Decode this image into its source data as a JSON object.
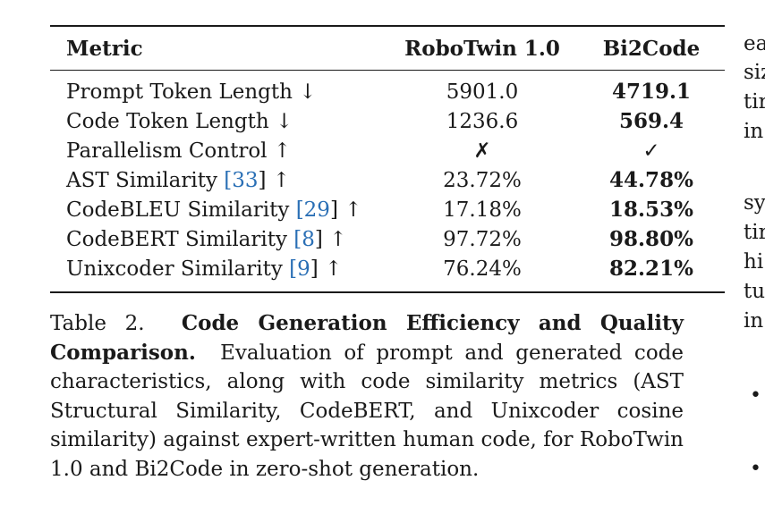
{
  "table": {
    "headers": [
      "Metric",
      "RoboTwin 1.0",
      "Bi2Code"
    ],
    "rows": [
      {
        "metric": "Prompt Token Length",
        "ref": "",
        "arrow": "↓",
        "robotwin": "5901.0",
        "bi2code": "4719.1"
      },
      {
        "metric": "Code Token Length",
        "ref": "",
        "arrow": "↓",
        "robotwin": "1236.6",
        "bi2code": "569.4"
      },
      {
        "metric": "Parallelism Control",
        "ref": "",
        "arrow": "↑",
        "robotwin": "✗",
        "bi2code": "✓"
      },
      {
        "metric": "AST Similarity",
        "ref": "33",
        "arrow": "↑",
        "robotwin": "23.72%",
        "bi2code": "44.78%"
      },
      {
        "metric": "CodeBLEU Similarity",
        "ref": "29",
        "arrow": "↑",
        "robotwin": "17.18%",
        "bi2code": "18.53%"
      },
      {
        "metric": "CodeBERT Similarity",
        "ref": "8",
        "arrow": "↑",
        "robotwin": "97.72%",
        "bi2code": "98.80%"
      },
      {
        "metric": "Unixcoder Similarity",
        "ref": "9",
        "arrow": "↑",
        "robotwin": "76.24%",
        "bi2code": "82.21%"
      }
    ]
  },
  "caption": {
    "label": "Table 2.",
    "title": "Code Generation Efficiency and Quality Comparison.",
    "text": "Evaluation of prompt and generated code characteristics, along with code similarity metrics (AST Structural Similarity, CodeBERT, and Unixcoder cosine similarity) against expert-written human code, for RoboTwin 1.0 and Bi2Code in zero-shot generation."
  },
  "right_column_fragments": [
    "ea",
    "siz",
    "tir",
    "in",
    "sy",
    "tir",
    "hi",
    "tu",
    "in"
  ],
  "right_column_bullets": [
    "•",
    "•"
  ]
}
